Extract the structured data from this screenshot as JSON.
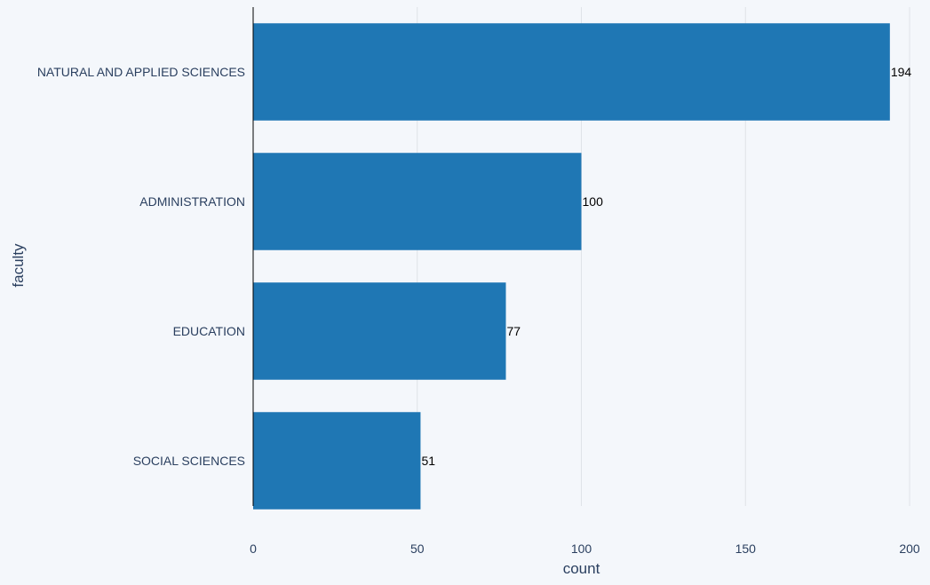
{
  "chart_data": {
    "type": "bar",
    "orientation": "horizontal",
    "categories": [
      "NATURAL AND APPLIED SCIENCES",
      "ADMINISTRATION",
      "EDUCATION",
      "SOCIAL SCIENCES"
    ],
    "values": [
      194,
      100,
      77,
      51
    ],
    "data_labels": [
      "194",
      "100",
      "77",
      "51"
    ],
    "xlabel": "count",
    "ylabel": "faculty",
    "xlim": [
      0,
      200
    ],
    "xticks": [
      0,
      50,
      100,
      150,
      200
    ],
    "grid": true,
    "legend": "none"
  },
  "colors": {
    "bar": "#1f77b4",
    "background": "#f4f7fb",
    "grid": "#dfe3e8",
    "text": "#2a3f5f"
  }
}
